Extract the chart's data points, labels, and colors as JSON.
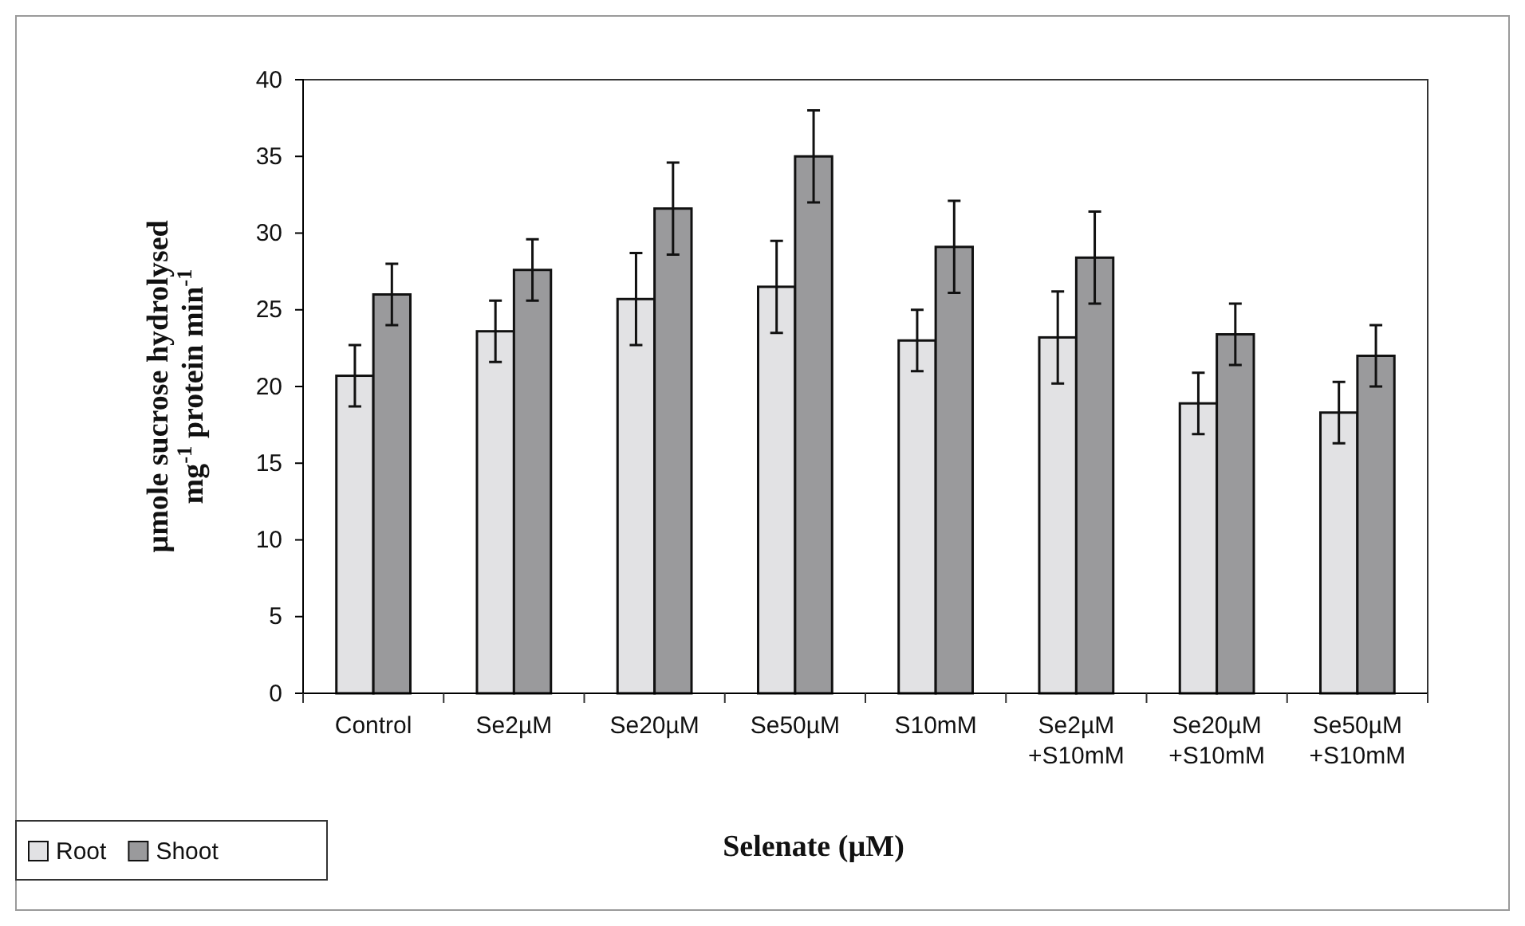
{
  "chart_data": {
    "type": "bar",
    "xlabel": "Selenate (µM)",
    "ylabel": "µmole sucrose hydrolysed\nmg$^{-1}$ protein min$^{-1}$",
    "categories": [
      "Control",
      "Se2µM",
      "Se20µM",
      "Se50µM",
      "S10mM",
      "Se2µM\n+S10mM",
      "Se20µM\n+S10mM",
      "Se50µM\n+S10mM"
    ],
    "series": [
      {
        "name": "Root",
        "color": "#e2e2e4",
        "values": [
          20.7,
          23.6,
          25.7,
          26.5,
          23.0,
          23.2,
          18.9,
          18.3
        ],
        "errors": [
          2,
          2,
          3,
          3,
          2,
          3,
          2,
          2
        ]
      },
      {
        "name": "Shoot",
        "color": "#9a9a9c",
        "values": [
          26.0,
          27.6,
          31.6,
          35.0,
          29.1,
          28.4,
          23.4,
          22.0
        ],
        "errors": [
          2,
          2,
          3,
          3,
          3,
          3,
          2,
          2
        ]
      }
    ],
    "ylim": [
      0,
      40
    ],
    "yticks": [
      0,
      5,
      10,
      15,
      20,
      25,
      30,
      35,
      40
    ],
    "grid": false,
    "legend": "bottom left"
  }
}
